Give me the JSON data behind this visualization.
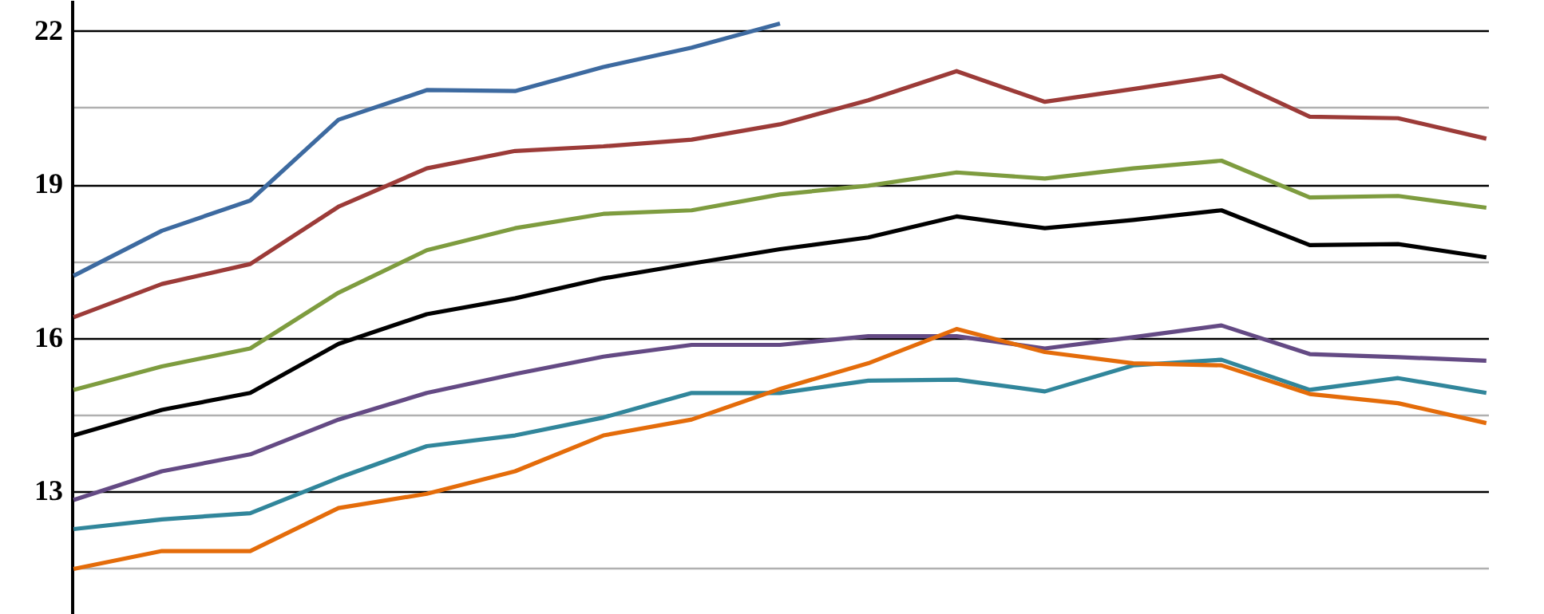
{
  "chart_data": {
    "type": "line",
    "categories": [
      null,
      null,
      null,
      null,
      null,
      null,
      null,
      null,
      null,
      null,
      null,
      null,
      null,
      null,
      null,
      null,
      null
    ],
    "series": [
      {
        "color": "#3d6aa0",
        "values": [
          17.21,
          18.09,
          18.68,
          20.26,
          20.84,
          20.82,
          21.29,
          21.67,
          22.14,
          null,
          null,
          null,
          null,
          null,
          null,
          null,
          null
        ]
      },
      {
        "color": "#9c3b38",
        "values": [
          16.4,
          17.05,
          17.44,
          18.56,
          19.31,
          19.65,
          19.74,
          19.87,
          20.17,
          20.64,
          21.21,
          20.61,
          20.86,
          21.12,
          20.32,
          20.29,
          19.89
        ]
      },
      {
        "color": "#7e9c3f",
        "values": [
          14.98,
          15.44,
          15.79,
          16.88,
          17.71,
          18.14,
          18.42,
          18.49,
          18.8,
          18.97,
          19.23,
          19.11,
          19.31,
          19.46,
          18.74,
          18.77,
          18.54
        ]
      },
      {
        "color": "#000000",
        "values": [
          14.09,
          14.59,
          14.92,
          15.88,
          16.46,
          16.77,
          17.16,
          17.45,
          17.73,
          17.96,
          18.37,
          18.14,
          18.3,
          18.49,
          17.81,
          17.83,
          17.57
        ]
      },
      {
        "color": "#644a84",
        "values": [
          12.83,
          13.39,
          13.72,
          14.4,
          14.92,
          15.29,
          15.63,
          15.86,
          15.86,
          16.03,
          16.03,
          15.79,
          16.01,
          16.24,
          15.68,
          15.62,
          15.55
        ]
      },
      {
        "color": "#31869b",
        "values": [
          12.26,
          12.45,
          12.57,
          13.26,
          13.88,
          14.09,
          14.44,
          14.92,
          14.92,
          15.16,
          15.18,
          14.95,
          15.46,
          15.57,
          14.98,
          15.21,
          14.92
        ]
      },
      {
        "color": "#e46c0a",
        "values": [
          11.48,
          11.83,
          11.83,
          12.67,
          12.95,
          13.39,
          14.09,
          14.4,
          15.0,
          15.5,
          16.17,
          15.72,
          15.5,
          15.46,
          14.9,
          14.72,
          14.33
        ]
      }
    ],
    "ylim": [
      10.6,
      22.6
    ],
    "yticks": [
      {
        "value": 11.5,
        "label": null
      },
      13,
      {
        "value": 14.5,
        "label": null
      },
      16,
      {
        "value": 17.5,
        "label": null
      },
      19,
      {
        "value": 20.5,
        "label": null
      },
      22
    ],
    "grid": "y",
    "tick_labels": "y",
    "marker": "none",
    "line_style": "solid"
  }
}
